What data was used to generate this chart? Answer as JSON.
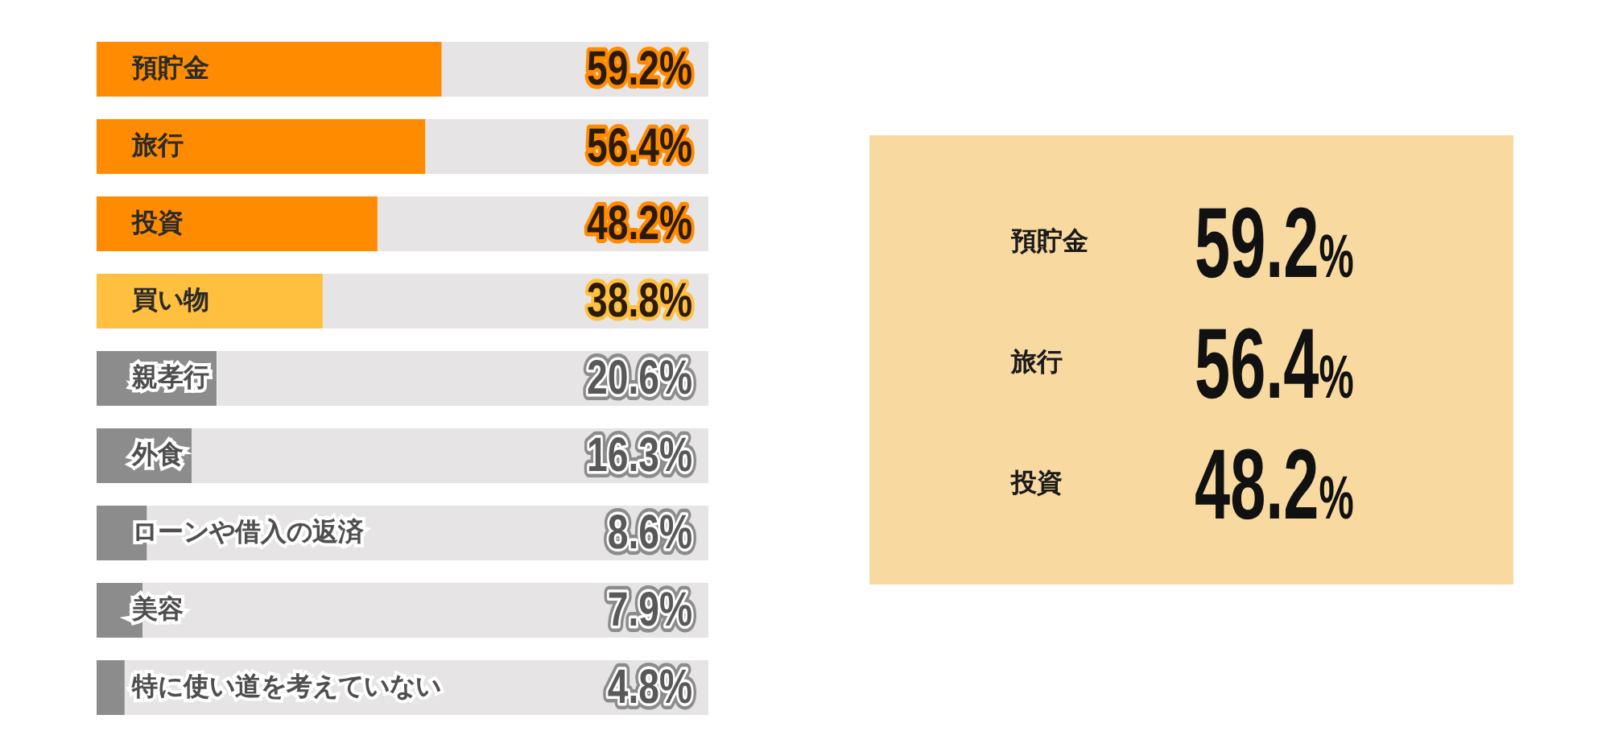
{
  "chart_data": [
    {
      "type": "bar",
      "orientation": "horizontal",
      "categories": [
        "預貯金",
        "旅行",
        "投資",
        "買い物",
        "親孝行",
        "外食",
        "ローンや借入の返済",
        "美容",
        "特に使い道を考えていない"
      ],
      "values": [
        59.2,
        56.4,
        48.2,
        38.8,
        20.6,
        16.3,
        8.6,
        7.9,
        4.8
      ],
      "colors": [
        "#ff8c00",
        "#ff8c00",
        "#ff8c00",
        "#ffbf3f",
        "#8c8c8c",
        "#8c8c8c",
        "#8c8c8c",
        "#8c8c8c",
        "#8c8c8c"
      ],
      "value_labels": [
        "59.2%",
        "56.4%",
        "48.2%",
        "38.8%",
        "20.6%",
        "16.3%",
        "8.6%",
        "7.9%",
        "4.8%"
      ],
      "xlim": [
        0,
        105
      ],
      "tick_labels": "y"
    },
    {
      "type": "other",
      "annotations": [
        "預貯金",
        "59.2%",
        "旅行",
        "56.4%",
        "投資",
        "48.2%"
      ]
    }
  ]
}
